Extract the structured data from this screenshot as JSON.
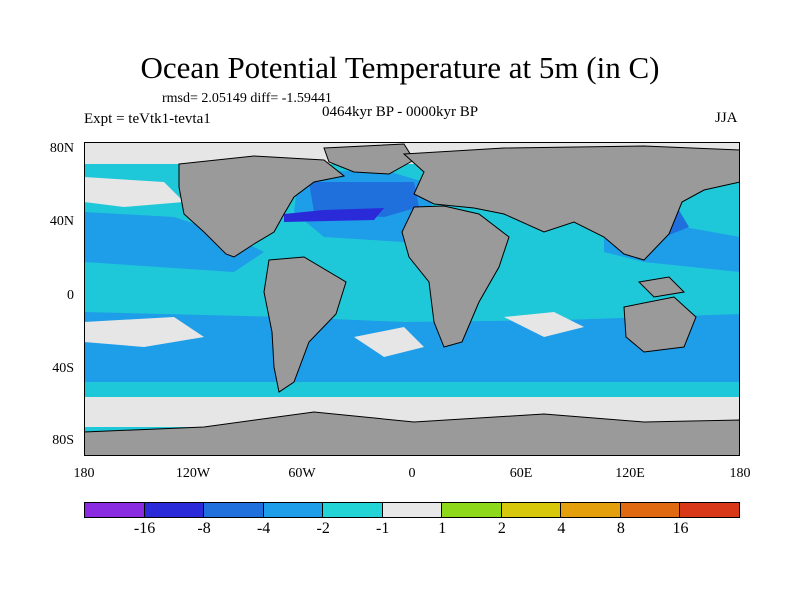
{
  "title": "Ocean Potential Temperature at 5m (in C)",
  "stats": "rmsd= 2.05149 diff= -1.59441",
  "expt": "Expt = teVtk1-tevta1",
  "period": "0464kyr BP - 0000kyr BP",
  "season": "JJA",
  "lat_labels": [
    "80N",
    "40N",
    "0",
    "40S",
    "80S"
  ],
  "lon_labels": [
    "180",
    "120W",
    "60W",
    "0",
    "60E",
    "120E",
    "180"
  ],
  "colorbar": {
    "colors": [
      "#8a2be2",
      "#2a2ad8",
      "#1f6fdd",
      "#1e9de8",
      "#22d4d6",
      "#e8e8e8",
      "#8ed81a",
      "#d8c80c",
      "#e3a00c",
      "#e06a10",
      "#d83818"
    ],
    "labels": [
      "-16",
      "-8",
      "-4",
      "-2",
      "-1",
      "1",
      "2",
      "4",
      "8",
      "16"
    ]
  },
  "palette": {
    "land": "#9a9a9a",
    "ice": "#e6e6e6",
    "cold_small": "#1ec8d8",
    "cold_mid": "#1e9de8",
    "cold_strong": "#1f6fdd",
    "cold_max": "#2a2ad8"
  }
}
